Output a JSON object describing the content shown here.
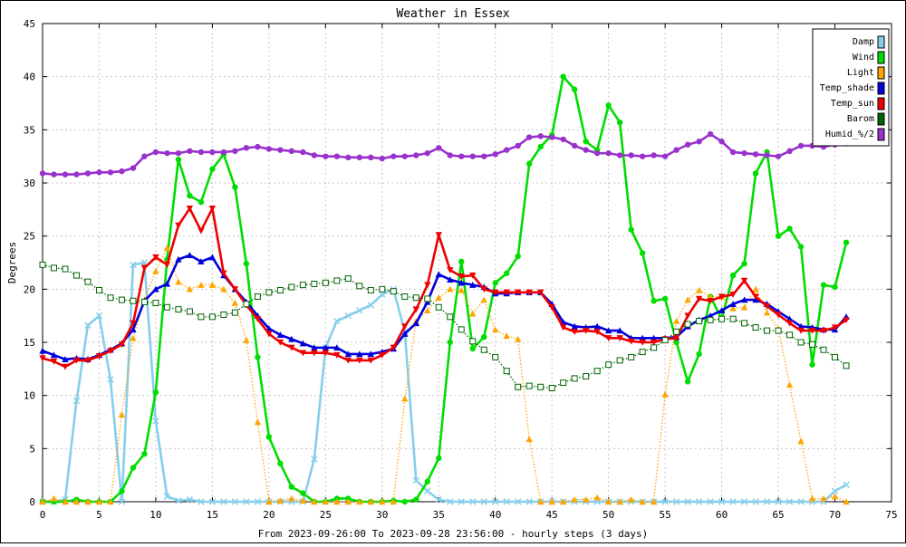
{
  "chart_data": {
    "type": "line",
    "title": "Weather in Essex",
    "ylabel": "Degrees",
    "xlabel": "From 2023-09-26:00 To 2023-09-28 23:56:00 - hourly steps (3 days)",
    "xlim": [
      0,
      75
    ],
    "ylim": [
      0,
      45
    ],
    "xticks": [
      0,
      5,
      10,
      15,
      20,
      25,
      30,
      35,
      40,
      45,
      50,
      55,
      60,
      65,
      70,
      75
    ],
    "yticks": [
      0,
      5,
      10,
      15,
      20,
      25,
      30,
      35,
      40,
      45
    ],
    "grid": true,
    "legend_position": "top-right",
    "series": [
      {
        "name": "Damp",
        "color": "#87ceeb",
        "marker": "cross",
        "dashed": false,
        "values": [
          0,
          0,
          0.2,
          9.5,
          16.6,
          17.5,
          11.5,
          0,
          22.3,
          22.5,
          7.6,
          0.5,
          0.1,
          0.2,
          0,
          0,
          0,
          0,
          0,
          0,
          0,
          0,
          0,
          0,
          4,
          14.5,
          17,
          17.5,
          18,
          18.5,
          19.5,
          20,
          16,
          2,
          1,
          0.2,
          0,
          0,
          0,
          0,
          0,
          0,
          0,
          0,
          0,
          0,
          0,
          0,
          0,
          0,
          0,
          0,
          0,
          0,
          0,
          0,
          0,
          0,
          0,
          0,
          0,
          0,
          0,
          0,
          0,
          0,
          0,
          0,
          0,
          0,
          1,
          1.6
        ]
      },
      {
        "name": "Wind",
        "color": "#00dd00",
        "marker": "circle",
        "dashed": false,
        "values": [
          0,
          0,
          0,
          0.2,
          0,
          0,
          0,
          1,
          3.2,
          4.5,
          10.3,
          22.8,
          32.2,
          28.8,
          28.2,
          31.3,
          32.7,
          29.6,
          22.4,
          13.6,
          6.1,
          3.6,
          1.4,
          0.8,
          0,
          0,
          0.3,
          0.3,
          0,
          0,
          0,
          0.1,
          0,
          0.2,
          1.9,
          4.1,
          15,
          22.6,
          14.4,
          15.5,
          20.6,
          21.5,
          23.1,
          31.8,
          33.4,
          34.5,
          40,
          38.8,
          33.9,
          33.1,
          37.3,
          35.7,
          25.6,
          23.4,
          18.9,
          19.1,
          15,
          11.3,
          13.9,
          19.3,
          17.2,
          21.3,
          22.4,
          30.9,
          32.9,
          25,
          25.7,
          24,
          12.9,
          20.4,
          20.2,
          24.4
        ]
      },
      {
        "name": "Light",
        "color": "#ffa500",
        "marker": "triangle",
        "dashed": true,
        "values": [
          0,
          0.3,
          0,
          0,
          0,
          0,
          0,
          8.2,
          15.4,
          19,
          21.7,
          23.9,
          20.7,
          20,
          20.4,
          20.4,
          20,
          18.7,
          15.2,
          7.5,
          0,
          0.1,
          0.3,
          0.1,
          0,
          0,
          0,
          0,
          0,
          0,
          0,
          0,
          9.7,
          17,
          18,
          19.2,
          20,
          19.9,
          17.7,
          19,
          16.2,
          15.6,
          15.3,
          5.9,
          0,
          0,
          0,
          0.2,
          0.2,
          0.4,
          0,
          0,
          0.2,
          0,
          0,
          10.1,
          17,
          19,
          19.9,
          19.3,
          19.3,
          18.2,
          18.3,
          20,
          17.8,
          16.3,
          11,
          5.7,
          0.3,
          0.3,
          0.5,
          0
        ]
      },
      {
        "name": "Temp_shade",
        "color": "#0000dd",
        "marker": "triangle",
        "dashed": false,
        "values": [
          14.2,
          13.8,
          13.4,
          13.5,
          13.4,
          13.8,
          14.3,
          14.9,
          16.2,
          18.9,
          20,
          20.5,
          22.8,
          23.2,
          22.6,
          23,
          21.3,
          20,
          18.8,
          17.5,
          16.3,
          15.7,
          15.3,
          14.9,
          14.5,
          14.5,
          14.5,
          13.9,
          13.9,
          13.9,
          14.1,
          14.4,
          15.8,
          16.8,
          18.8,
          21.4,
          20.9,
          20.6,
          20.4,
          20.2,
          19.6,
          19.6,
          19.7,
          19.7,
          19.7,
          18.6,
          16.9,
          16.5,
          16.4,
          16.5,
          16.1,
          16.1,
          15.4,
          15.4,
          15.4,
          15.4,
          15.5,
          16.5,
          17.1,
          17.5,
          18,
          18.6,
          19,
          19,
          18.6,
          17.9,
          17.2,
          16.5,
          16.4,
          16.2,
          16.2,
          17.4
        ]
      },
      {
        "name": "Temp_sun",
        "color": "#ee0000",
        "marker": "triangle-down",
        "dashed": false,
        "values": [
          13.5,
          13.2,
          12.7,
          13.3,
          13.3,
          13.7,
          14.2,
          14.8,
          16.8,
          22,
          23,
          22.3,
          26,
          27.6,
          25.5,
          27.6,
          21.5,
          20,
          18.5,
          17.2,
          15.8,
          15,
          14.5,
          14,
          14,
          14,
          13.8,
          13.3,
          13.3,
          13.3,
          13.8,
          14.5,
          16.5,
          18.1,
          20.4,
          25.1,
          21.8,
          21.2,
          21.3,
          20,
          19.7,
          19.7,
          19.7,
          19.7,
          19.7,
          18.3,
          16.4,
          16,
          16.1,
          16,
          15.4,
          15.4,
          15.1,
          15,
          15,
          15.3,
          15.4,
          17.5,
          19.1,
          18.9,
          19.3,
          19.5,
          20.8,
          19.3,
          18.4,
          17.6,
          16.8,
          16.1,
          16.1,
          16.1,
          16.4,
          17.1
        ]
      },
      {
        "name": "Barom",
        "color": "#006400",
        "marker": "square",
        "dashed": true,
        "values": [
          22.3,
          22,
          21.9,
          21.3,
          20.7,
          19.9,
          19.2,
          19,
          18.9,
          18.8,
          18.7,
          18.3,
          18.1,
          17.9,
          17.4,
          17.4,
          17.6,
          17.8,
          18.6,
          19.3,
          19.7,
          19.9,
          20.2,
          20.4,
          20.5,
          20.6,
          20.8,
          21,
          20.3,
          19.9,
          20,
          19.8,
          19.3,
          19.2,
          19.1,
          18.3,
          17.4,
          16.2,
          15.1,
          14.3,
          13.6,
          12.3,
          10.8,
          10.9,
          10.8,
          10.7,
          11.2,
          11.6,
          11.8,
          12.3,
          12.9,
          13.3,
          13.6,
          14.1,
          14.5,
          15.2,
          16,
          16.7,
          17,
          17.1,
          17.2,
          17.2,
          16.8,
          16.4,
          16.1,
          16.1,
          15.7,
          15,
          14.8,
          14.3,
          13.6,
          12.8
        ]
      },
      {
        "name": "Humid_%/2",
        "color": "#9932cc",
        "marker": "circle",
        "dashed": false,
        "values": [
          30.9,
          30.8,
          30.8,
          30.8,
          30.9,
          31,
          31,
          31.1,
          31.4,
          32.5,
          32.9,
          32.8,
          32.8,
          33,
          32.9,
          32.9,
          32.9,
          33,
          33.3,
          33.4,
          33.2,
          33.1,
          33,
          32.9,
          32.6,
          32.5,
          32.5,
          32.4,
          32.4,
          32.4,
          32.3,
          32.5,
          32.5,
          32.6,
          32.8,
          33.3,
          32.6,
          32.5,
          32.5,
          32.5,
          32.7,
          33.1,
          33.5,
          34.3,
          34.4,
          34.3,
          34.1,
          33.5,
          33.1,
          32.8,
          32.8,
          32.6,
          32.6,
          32.5,
          32.6,
          32.5,
          33.1,
          33.6,
          33.9,
          34.6,
          33.9,
          32.9,
          32.8,
          32.7,
          32.6,
          32.5,
          33,
          33.5,
          33.5,
          33.4,
          33.6,
          33.7
        ]
      }
    ]
  }
}
